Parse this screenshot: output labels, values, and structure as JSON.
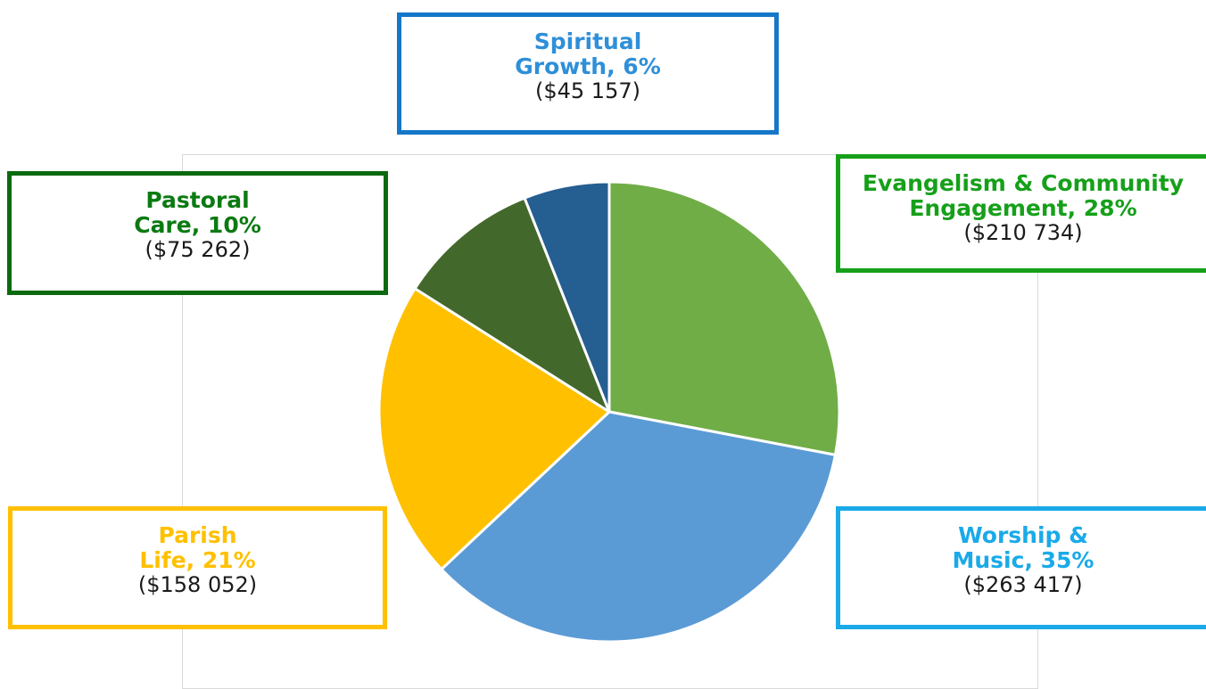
{
  "chart_data": {
    "type": "pie",
    "title": "",
    "slices": [
      {
        "label_line1": "Evangelism & Community",
        "label_line2": "Engagement, 28%",
        "percent": 28,
        "value": 210734,
        "amount_text": "($210 734)",
        "color": "#70AD47",
        "label_color": "#16A01A",
        "border_color": "#16A01A"
      },
      {
        "label_line1": "Worship &",
        "label_line2": "Music, 35%",
        "percent": 35,
        "value": 263417,
        "amount_text": "($263 417)",
        "color": "#5B9BD5",
        "label_color": "#1AAAE8",
        "border_color": "#1AAAE8"
      },
      {
        "label_line1": "Parish",
        "label_line2": "Life, 21%",
        "percent": 21,
        "value": 158052,
        "amount_text": "($158 052)",
        "color": "#FFC000",
        "label_color": "#FFC000",
        "border_color": "#FFC000"
      },
      {
        "label_line1": "Pastoral",
        "label_line2": "Care, 10%",
        "percent": 10,
        "value": 75262,
        "amount_text": "($75 262)",
        "color": "#43682B",
        "label_color": "#0B7A12",
        "border_color": "#0B6A10"
      },
      {
        "label_line1": "Spiritual",
        "label_line2": "Growth, 6%",
        "percent": 6,
        "value": 45157,
        "amount_text": "($45 157)",
        "color": "#255E91",
        "label_color": "#2F8FD8",
        "border_color": "#1577C8"
      }
    ]
  }
}
